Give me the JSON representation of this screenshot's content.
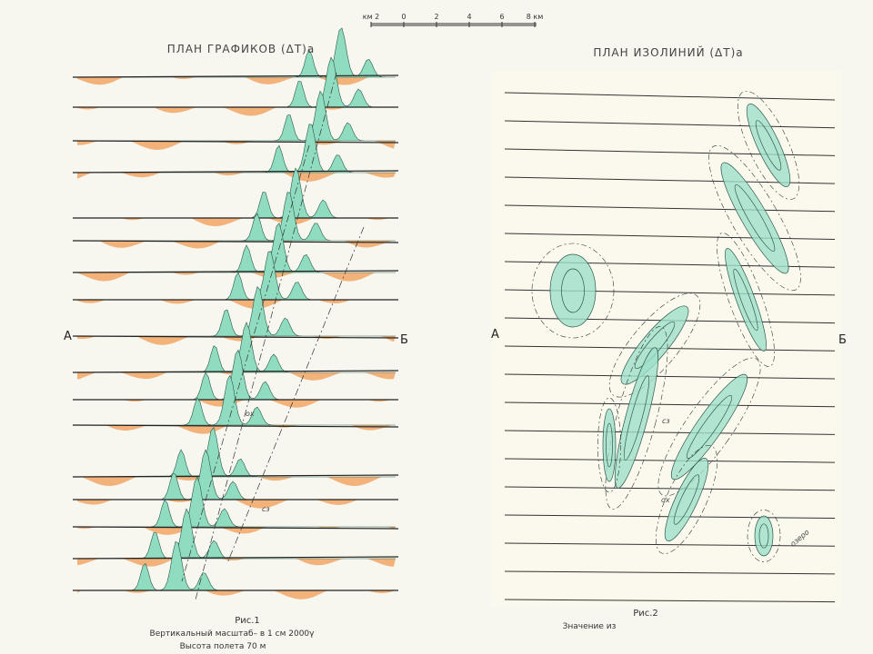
{
  "scale_bar": {
    "labels": [
      "км 2",
      "0",
      "2",
      "4",
      "6",
      "8 км"
    ]
  },
  "left_panel": {
    "title": "ПЛАН ГРАФИКОВ (ΔT)a",
    "point_a": "А",
    "point_b": "Б",
    "figure": "Рис.1",
    "caption_lines": [
      "Вертикальный масштаб– в 1 см 2000γ",
      "Высота полета 70 м"
    ],
    "annotations": [
      "ох",
      "сз"
    ]
  },
  "right_panel": {
    "title": "ПЛАН ИЗОЛИНИЙ (ΔT)a",
    "point_a": "А",
    "point_b": "Б",
    "figure": "Рис.2",
    "caption": "Значение из",
    "lake": "озеро",
    "annotations": [
      "ох",
      "сз"
    ]
  }
}
